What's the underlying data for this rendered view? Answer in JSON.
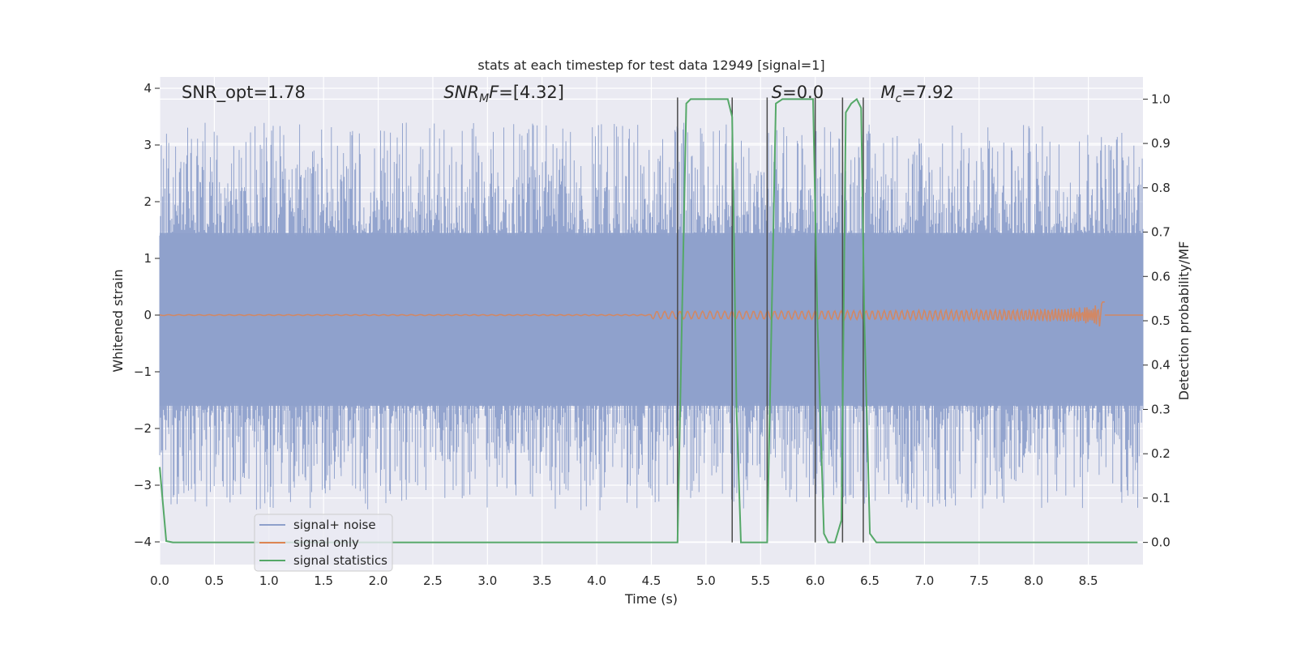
{
  "chart_data": {
    "type": "line",
    "title": "stats at each timestep for test data 12949 [signal=1]",
    "xlabel": "Time (s)",
    "ylabel": "Whitened strain",
    "y2label": "Detection probability/MF",
    "xlim": [
      0.0,
      9.0
    ],
    "ylim": [
      -4.4,
      4.2
    ],
    "y2lim": [
      -0.05,
      1.05
    ],
    "xticks": [
      "0.0",
      "0.5",
      "1.0",
      "1.5",
      "2.0",
      "2.5",
      "3.0",
      "3.5",
      "4.0",
      "4.5",
      "5.0",
      "5.5",
      "6.0",
      "6.5",
      "7.0",
      "7.5",
      "8.0",
      "8.5"
    ],
    "yticks": [
      "4",
      "3",
      "2",
      "1",
      "0",
      "−1",
      "−2",
      "−3",
      "−4"
    ],
    "y2ticks": [
      "1.0",
      "0.9",
      "0.8",
      "0.7",
      "0.6",
      "0.5",
      "0.4",
      "0.3",
      "0.2",
      "0.1",
      "0.0"
    ],
    "grid": true,
    "legend_placement": "lower-left",
    "annotations": [
      {
        "text": "SNR_opt=1.78",
        "x": 0.2
      },
      {
        "text": "=[4.32]",
        "math": {
          "base": "SNR",
          "sub": "M",
          "tail": "F"
        },
        "x": 2.6
      },
      {
        "text": "=0.0",
        "math": {
          "base": "S",
          "sub": "",
          "tail": ""
        },
        "x": 5.6
      },
      {
        "text": "=7.92",
        "math": {
          "base": "M",
          "sub": "c",
          "tail": ""
        },
        "x": 6.6
      }
    ],
    "series": [
      {
        "name": "signal+ noise",
        "color": "#8ea0cb",
        "style": "noise",
        "amplitude_range": [
          -4.0,
          3.9
        ],
        "seed": 12949
      },
      {
        "name": "signal only",
        "color": "#dd8452",
        "style": "chirp",
        "t_end": 8.65,
        "peak": 0.25
      },
      {
        "name": "signal statistics",
        "color": "#55a868",
        "axis": "right",
        "x": [
          0.0,
          0.06,
          0.12,
          0.2,
          4.5,
          4.74,
          4.78,
          4.82,
          4.86,
          5.0,
          5.2,
          5.24,
          5.28,
          5.32,
          5.38,
          5.5,
          5.56,
          5.6,
          5.64,
          5.7,
          5.85,
          5.98,
          6.02,
          6.08,
          6.12,
          6.18,
          6.24,
          6.28,
          6.33,
          6.38,
          6.42,
          6.45,
          6.5,
          6.56,
          7.0,
          8.0,
          8.95
        ],
        "y": [
          0.17,
          0.003,
          0.0,
          0.0,
          0.0,
          0.0,
          0.5,
          0.99,
          1.0,
          1.0,
          1.0,
          0.96,
          0.3,
          0.0,
          0.0,
          0.0,
          0.0,
          0.5,
          0.99,
          1.0,
          1.0,
          1.0,
          0.5,
          0.02,
          0.0,
          0.0,
          0.05,
          0.97,
          0.99,
          1.0,
          0.98,
          0.5,
          0.02,
          0.0,
          0.0,
          0.0,
          0.0
        ]
      }
    ],
    "vlines": [
      4.74,
      5.24,
      5.56,
      6.0,
      6.25,
      6.44
    ],
    "vline_color": "#4a4a4a"
  }
}
